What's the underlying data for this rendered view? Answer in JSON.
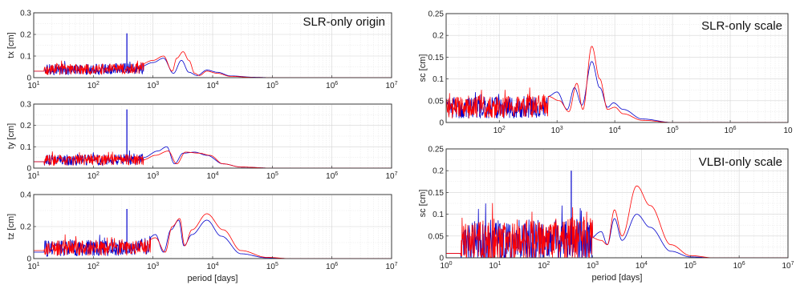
{
  "chart_data": [
    {
      "id": "tx",
      "type": "line",
      "title": "SLR-only origin",
      "xlabel": "",
      "ylabel": "tx [cm]",
      "xscale": "log",
      "xlim": [
        10,
        10000000
      ],
      "ylim": [
        0,
        0.3
      ],
      "xticks": [
        {
          "v": 10,
          "m": "1"
        },
        {
          "v": 100,
          "m": "2"
        },
        {
          "v": 1000,
          "m": "3"
        },
        {
          "v": 10000,
          "m": "4"
        },
        {
          "v": 100000,
          "m": "5"
        },
        {
          "v": 1000000,
          "m": "6"
        },
        {
          "v": 10000000,
          "m": "7"
        }
      ],
      "yticks": [
        {
          "v": 0,
          "label": "0"
        },
        {
          "v": 0.1,
          "label": "0.1"
        },
        {
          "v": 0.2,
          "label": "0.2"
        },
        {
          "v": 0.3,
          "label": "0.3"
        }
      ],
      "noise": {
        "from": 15,
        "to": 700,
        "mean": 0.03,
        "amp": 0.025
      },
      "series": [
        {
          "color": "#0000cc",
          "points": [
            [
              15,
              0.03
            ],
            [
              100,
              0.03
            ],
            [
              360,
              0.05
            ],
            [
              365,
              0.205
            ],
            [
              372,
              0.05
            ],
            [
              600,
              0.05
            ],
            [
              1000,
              0.07
            ],
            [
              1500,
              0.09
            ],
            [
              2200,
              0.02
            ],
            [
              3000,
              0.08
            ],
            [
              4000,
              0.025
            ],
            [
              5500,
              0.01
            ],
            [
              8000,
              0.035
            ],
            [
              12000,
              0.025
            ],
            [
              20000,
              0.008
            ],
            [
              50000,
              0.002
            ],
            [
              100000,
              0.0
            ],
            [
              10000000,
              0.0
            ]
          ]
        },
        {
          "color": "#ff0000",
          "points": [
            [
              15,
              0.03
            ],
            [
              100,
              0.035
            ],
            [
              300,
              0.05
            ],
            [
              600,
              0.06
            ],
            [
              1000,
              0.08
            ],
            [
              1500,
              0.1
            ],
            [
              2100,
              0.03
            ],
            [
              2500,
              0.09
            ],
            [
              3200,
              0.12
            ],
            [
              4000,
              0.08
            ],
            [
              5000,
              0.02
            ],
            [
              6000,
              0.01
            ],
            [
              8000,
              0.03
            ],
            [
              12000,
              0.02
            ],
            [
              20000,
              0.006
            ],
            [
              50000,
              0.001
            ],
            [
              100000,
              0.0
            ],
            [
              10000000,
              0.0
            ]
          ]
        }
      ]
    },
    {
      "id": "ty",
      "type": "line",
      "title": "",
      "xlabel": "",
      "ylabel": "ty [cm]",
      "xscale": "log",
      "xlim": [
        10,
        10000000
      ],
      "ylim": [
        0,
        0.3
      ],
      "xticks": [
        {
          "v": 10,
          "m": "1"
        },
        {
          "v": 100,
          "m": "2"
        },
        {
          "v": 1000,
          "m": "3"
        },
        {
          "v": 10000,
          "m": "4"
        },
        {
          "v": 100000,
          "m": "5"
        },
        {
          "v": 1000000,
          "m": "6"
        },
        {
          "v": 10000000,
          "m": "7"
        }
      ],
      "yticks": [
        {
          "v": 0,
          "label": "0"
        },
        {
          "v": 0.1,
          "label": "0.1"
        },
        {
          "v": 0.2,
          "label": "0.2"
        },
        {
          "v": 0.3,
          "label": "0.3"
        }
      ],
      "noise": {
        "from": 15,
        "to": 700,
        "mean": 0.03,
        "amp": 0.025
      },
      "series": [
        {
          "color": "#0000cc",
          "points": [
            [
              15,
              0.03
            ],
            [
              100,
              0.03
            ],
            [
              360,
              0.04
            ],
            [
              365,
              0.275
            ],
            [
              372,
              0.05
            ],
            [
              700,
              0.05
            ],
            [
              1200,
              0.08
            ],
            [
              1700,
              0.1
            ],
            [
              2300,
              0.02
            ],
            [
              3200,
              0.07
            ],
            [
              5000,
              0.075
            ],
            [
              8000,
              0.06
            ],
            [
              15000,
              0.02
            ],
            [
              30000,
              0.005
            ],
            [
              100000,
              0.0
            ],
            [
              10000000,
              0.0
            ]
          ]
        },
        {
          "color": "#ff0000",
          "points": [
            [
              15,
              0.03
            ],
            [
              100,
              0.03
            ],
            [
              300,
              0.04
            ],
            [
              700,
              0.04
            ],
            [
              1100,
              0.06
            ],
            [
              1800,
              0.08
            ],
            [
              2500,
              0.02
            ],
            [
              3500,
              0.075
            ],
            [
              6000,
              0.07
            ],
            [
              9000,
              0.06
            ],
            [
              15000,
              0.02
            ],
            [
              30000,
              0.005
            ],
            [
              100000,
              0.0
            ],
            [
              10000000,
              0.0
            ]
          ]
        }
      ]
    },
    {
      "id": "tz",
      "type": "line",
      "title": "",
      "xlabel": "period [days]",
      "ylabel": "tz [cm]",
      "xscale": "log",
      "xlim": [
        10,
        10000000
      ],
      "ylim": [
        0,
        0.4
      ],
      "xticks": [
        {
          "v": 10,
          "m": "1"
        },
        {
          "v": 100,
          "m": "2"
        },
        {
          "v": 1000,
          "m": "3"
        },
        {
          "v": 10000,
          "m": "4"
        },
        {
          "v": 100000,
          "m": "5"
        },
        {
          "v": 1000000,
          "m": "6"
        },
        {
          "v": 10000000,
          "m": "7"
        }
      ],
      "yticks": [
        {
          "v": 0,
          "label": "0"
        },
        {
          "v": 0.2,
          "label": "0.2"
        },
        {
          "v": 0.4,
          "label": "0.4"
        }
      ],
      "noise": {
        "from": 15,
        "to": 900,
        "mean": 0.05,
        "amp": 0.05
      },
      "series": [
        {
          "color": "#0000cc",
          "points": [
            [
              15,
              0.04
            ],
            [
              100,
              0.05
            ],
            [
              360,
              0.07
            ],
            [
              365,
              0.31
            ],
            [
              372,
              0.08
            ],
            [
              700,
              0.1
            ],
            [
              1100,
              0.15
            ],
            [
              1500,
              0.04
            ],
            [
              2000,
              0.18
            ],
            [
              2700,
              0.24
            ],
            [
              3300,
              0.08
            ],
            [
              4500,
              0.15
            ],
            [
              8000,
              0.24
            ],
            [
              14000,
              0.14
            ],
            [
              30000,
              0.03
            ],
            [
              80000,
              0.005
            ],
            [
              200000,
              0.0
            ],
            [
              10000000,
              0.0
            ]
          ]
        },
        {
          "color": "#ff0000",
          "points": [
            [
              15,
              0.05
            ],
            [
              100,
              0.06
            ],
            [
              300,
              0.08
            ],
            [
              700,
              0.1
            ],
            [
              1100,
              0.13
            ],
            [
              1600,
              0.04
            ],
            [
              2100,
              0.2
            ],
            [
              2800,
              0.25
            ],
            [
              3400,
              0.08
            ],
            [
              4500,
              0.18
            ],
            [
              8000,
              0.28
            ],
            [
              15000,
              0.18
            ],
            [
              30000,
              0.05
            ],
            [
              80000,
              0.008
            ],
            [
              200000,
              0.0
            ],
            [
              10000000,
              0.0
            ]
          ]
        }
      ]
    },
    {
      "id": "sc-slr",
      "type": "line",
      "title": "SLR-only scale",
      "xlabel": "",
      "ylabel": "sc [cm]",
      "xscale": "log",
      "xlim": [
        12,
        10000000
      ],
      "ylim": [
        0,
        0.25
      ],
      "xticks": [
        {
          "v": 100,
          "m": "2"
        },
        {
          "v": 1000,
          "m": "3"
        },
        {
          "v": 10000,
          "m": "4"
        },
        {
          "v": 100000,
          "m": "5"
        },
        {
          "v": 1000000,
          "m": "6"
        },
        {
          "v": 10000000,
          "base": "10"
        }
      ],
      "yticks": [
        {
          "v": 0,
          "label": "0"
        },
        {
          "v": 0.05,
          "label": "0.05"
        },
        {
          "v": 0.1,
          "label": "0.1"
        },
        {
          "v": 0.15,
          "label": "0.15"
        },
        {
          "v": 0.2,
          "label": "0.2"
        },
        {
          "v": 0.25,
          "label": "0.25"
        }
      ],
      "noise": {
        "from": 12,
        "to": 700,
        "mean": 0.025,
        "amp": 0.025
      },
      "series": [
        {
          "color": "#0000cc",
          "points": [
            [
              12,
              0.03
            ],
            [
              100,
              0.035
            ],
            [
              360,
              0.04
            ],
            [
              365,
              0.14
            ],
            [
              372,
              0.04
            ],
            [
              700,
              0.06
            ],
            [
              1000,
              0.07
            ],
            [
              1500,
              0.03
            ],
            [
              2000,
              0.08
            ],
            [
              2700,
              0.04
            ],
            [
              4000,
              0.14
            ],
            [
              5500,
              0.08
            ],
            [
              7500,
              0.035
            ],
            [
              9500,
              0.045
            ],
            [
              14000,
              0.03
            ],
            [
              30000,
              0.008
            ],
            [
              100000,
              0.0
            ],
            [
              10000000,
              0.0
            ]
          ]
        },
        {
          "color": "#ff0000",
          "points": [
            [
              12,
              0.035
            ],
            [
              100,
              0.04
            ],
            [
              300,
              0.045
            ],
            [
              700,
              0.06
            ],
            [
              1100,
              0.05
            ],
            [
              1600,
              0.025
            ],
            [
              2200,
              0.09
            ],
            [
              2800,
              0.03
            ],
            [
              4000,
              0.175
            ],
            [
              5500,
              0.1
            ],
            [
              7500,
              0.03
            ],
            [
              10000,
              0.035
            ],
            [
              14000,
              0.02
            ],
            [
              30000,
              0.005
            ],
            [
              100000,
              0.0
            ],
            [
              10000000,
              0.0
            ]
          ]
        }
      ]
    },
    {
      "id": "sc-vlbi",
      "type": "line",
      "title": "VLBI-only scale",
      "xlabel": "period [days]",
      "ylabel": "sc [cm]",
      "xscale": "log",
      "xlim": [
        1,
        10000000
      ],
      "ylim": [
        0,
        0.25
      ],
      "xticks": [
        {
          "v": 1,
          "m": "0"
        },
        {
          "v": 10,
          "m": "1"
        },
        {
          "v": 100,
          "m": "2"
        },
        {
          "v": 1000,
          "m": "3"
        },
        {
          "v": 10000,
          "m": "4"
        },
        {
          "v": 100000,
          "m": "5"
        },
        {
          "v": 1000000,
          "m": "6"
        },
        {
          "v": 10000000,
          "m": "7"
        }
      ],
      "yticks": [
        {
          "v": 0,
          "label": "0"
        },
        {
          "v": 0.05,
          "label": "0.05"
        },
        {
          "v": 0.1,
          "label": "0.1"
        },
        {
          "v": 0.15,
          "label": "0.15"
        },
        {
          "v": 0.2,
          "label": "0.2"
        },
        {
          "v": 0.25,
          "label": "0.25"
        }
      ],
      "noise": {
        "from": 2,
        "to": 1000,
        "mean": 0.02,
        "amp": 0.05
      },
      "series": [
        {
          "color": "#0000cc",
          "points": [
            [
              2,
              0.01
            ],
            [
              10,
              0.03
            ],
            [
              100,
              0.04
            ],
            [
              360,
              0.05
            ],
            [
              365,
              0.2
            ],
            [
              372,
              0.05
            ],
            [
              800,
              0.04
            ],
            [
              1500,
              0.06
            ],
            [
              2000,
              0.03
            ],
            [
              2800,
              0.09
            ],
            [
              4000,
              0.04
            ],
            [
              8000,
              0.1
            ],
            [
              15000,
              0.07
            ],
            [
              40000,
              0.015
            ],
            [
              100000,
              0.002
            ],
            [
              300000,
              0.0
            ],
            [
              10000000,
              0.0
            ]
          ]
        },
        {
          "color": "#ff0000",
          "points": [
            [
              2,
              0.01
            ],
            [
              10,
              0.03
            ],
            [
              100,
              0.04
            ],
            [
              300,
              0.05
            ],
            [
              800,
              0.05
            ],
            [
              1500,
              0.04
            ],
            [
              2000,
              0.03
            ],
            [
              2800,
              0.11
            ],
            [
              4000,
              0.05
            ],
            [
              8000,
              0.165
            ],
            [
              15000,
              0.12
            ],
            [
              40000,
              0.03
            ],
            [
              100000,
              0.005
            ],
            [
              300000,
              0.0
            ],
            [
              10000000,
              0.0
            ]
          ]
        }
      ]
    }
  ]
}
